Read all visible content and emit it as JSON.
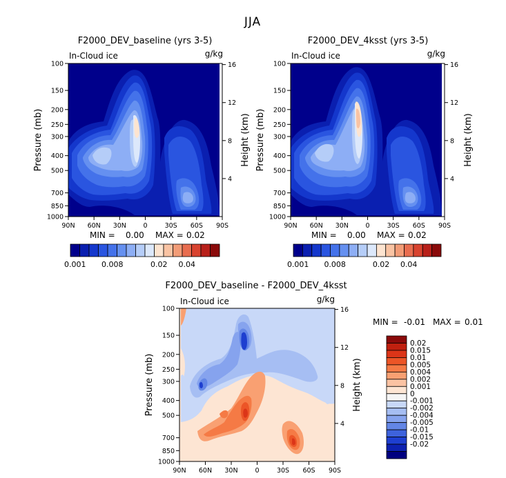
{
  "figure_title": "JJA",
  "chart_data": [
    {
      "type": "heatmap",
      "title": "F2000_DEV_baseline (yrs 3-5)",
      "variable": "In-Cloud ice",
      "units": "g/kg",
      "ylabel": "Pressure (mb)",
      "ylabel_right": "Height (km)",
      "xlim": [
        90,
        -90
      ],
      "ylim": [
        1000,
        100
      ],
      "x_ticks": [
        "90N",
        "60N",
        "30N",
        "0",
        "30S",
        "60S",
        "90S"
      ],
      "x_tick_values": [
        90,
        60,
        30,
        0,
        -30,
        -60,
        -90
      ],
      "y_ticks": [
        "100",
        "150",
        "200",
        "250",
        "300",
        "400",
        "500",
        "700",
        "850",
        "1000"
      ],
      "y_tick_values": [
        100,
        150,
        200,
        250,
        300,
        400,
        500,
        700,
        850,
        1000
      ],
      "height_ticks": [
        "16",
        "12",
        "8",
        "4"
      ],
      "height_tick_values": [
        16,
        12,
        8,
        4
      ],
      "min_label": "MIN =",
      "min_value": "0.00",
      "max_label": "MAX =",
      "max_value": "0.02",
      "colorbar_labels": [
        "0.001",
        "0.008",
        "0.02",
        "0.04"
      ],
      "colorbar_colors": [
        "#00008b",
        "#0a1fb0",
        "#1437cc",
        "#2a55e0",
        "#4472ea",
        "#6590f0",
        "#8daef5",
        "#b5cdf8",
        "#dce8fb",
        "#fde4d0",
        "#f9c3a3",
        "#f29c77",
        "#e86d4f",
        "#d8432f",
        "#b8201a",
        "#8a0a0a"
      ]
    },
    {
      "type": "heatmap",
      "title": "F2000_DEV_4ksst (yrs 3-5)",
      "variable": "In-Cloud ice",
      "units": "g/kg",
      "ylabel": "Pressure (mb)",
      "ylabel_right": "Height (km)",
      "xlim": [
        90,
        -90
      ],
      "ylim": [
        1000,
        100
      ],
      "x_ticks": [
        "90N",
        "60N",
        "30N",
        "0",
        "30S",
        "60S",
        "90S"
      ],
      "x_tick_values": [
        90,
        60,
        30,
        0,
        -30,
        -60,
        -90
      ],
      "y_ticks": [
        "100",
        "150",
        "200",
        "250",
        "300",
        "400",
        "500",
        "700",
        "850",
        "1000"
      ],
      "y_tick_values": [
        100,
        150,
        200,
        250,
        300,
        400,
        500,
        700,
        850,
        1000
      ],
      "height_ticks": [
        "16",
        "12",
        "8",
        "4"
      ],
      "height_tick_values": [
        16,
        12,
        8,
        4
      ],
      "min_label": "MIN =",
      "min_value": "0.00",
      "max_label": "MAX =",
      "max_value": "0.02",
      "colorbar_labels": [
        "0.001",
        "0.008",
        "0.02",
        "0.04"
      ],
      "colorbar_colors": [
        "#00008b",
        "#0a1fb0",
        "#1437cc",
        "#2a55e0",
        "#4472ea",
        "#6590f0",
        "#8daef5",
        "#b5cdf8",
        "#dce8fb",
        "#fde4d0",
        "#f9c3a3",
        "#f29c77",
        "#e86d4f",
        "#d8432f",
        "#b8201a",
        "#8a0a0a"
      ]
    },
    {
      "type": "heatmap",
      "title": "F2000_DEV_baseline - F2000_DEV_4ksst",
      "variable": "In-Cloud ice",
      "units": "g/kg",
      "ylabel": "Pressure (mb)",
      "ylabel_right": "Height (km)",
      "xlim": [
        90,
        -90
      ],
      "ylim": [
        1000,
        100
      ],
      "x_ticks": [
        "90N",
        "60N",
        "30N",
        "0",
        "30S",
        "60S",
        "90S"
      ],
      "x_tick_values": [
        90,
        60,
        30,
        0,
        -30,
        -60,
        -90
      ],
      "y_ticks": [
        "100",
        "150",
        "200",
        "250",
        "300",
        "400",
        "500",
        "700",
        "850",
        "1000"
      ],
      "y_tick_values": [
        100,
        150,
        200,
        250,
        300,
        400,
        500,
        700,
        850,
        1000
      ],
      "height_ticks": [
        "16",
        "12",
        "8",
        "4"
      ],
      "height_tick_values": [
        16,
        12,
        8,
        4
      ],
      "min_label": "MIN =",
      "min_value": "-0.01",
      "max_label": "MAX =",
      "max_value": "0.01",
      "colorbar_labels": [
        "0.02",
        "0.015",
        "0.01",
        "0.005",
        "0.004",
        "0.002",
        "0.001",
        "0",
        "-0.001",
        "-0.002",
        "-0.004",
        "-0.005",
        "-0.01",
        "-0.015",
        "-0.02"
      ],
      "colorbar_colors": [
        "#8a0a0a",
        "#c0200f",
        "#dc3518",
        "#ec5527",
        "#f57a45",
        "#f9a072",
        "#fbc3a3",
        "#fde5d3",
        "#f5f5f5",
        "#c8d8f8",
        "#a6bef3",
        "#86a3ee",
        "#6386e6",
        "#3e63dc",
        "#1e3fd0",
        "#0d21b0",
        "#000080"
      ]
    }
  ]
}
